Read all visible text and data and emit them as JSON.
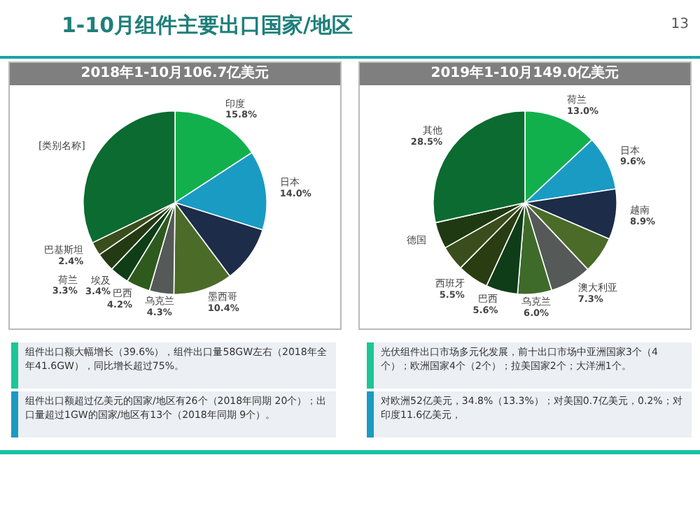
{
  "chart_data": [
    {
      "type": "other",
      "title": "1-10月组件主要出口国家/地区",
      "annotations": [
        "13",
        "组件出口额大幅增长（39.6%），组件出口量58GW左右（2018年全年41.6GW），同比增长超过75%。",
        "光伏组件出口市场多元化发展，前十出口市场中亚洲国家3个（4个）；欧洲国家4个（2个）；拉美国家2个；大洋洲1个。",
        "组件出口额超过亿美元的国家/地区有26个（2018年同期 20个）；出口量超过1GW的国家/地区有13个（2018年同期 9个）。",
        "对欧洲52亿美元，34.8%（13.3%）；对美国0.7亿美元，0.2%；对印度11.6亿美元，"
      ]
    },
    {
      "type": "pie",
      "title": "2018年1-10月106.7亿美元",
      "legend": false,
      "categories": [
        "印度",
        "日本",
        null,
        "墨西哥",
        "乌克兰",
        "巴西",
        "埃及",
        "荷兰",
        "巴基斯坦",
        "[类别名称]"
      ],
      "values": [
        15.8,
        14.0,
        10.0,
        10.4,
        4.3,
        4.2,
        3.4,
        3.3,
        2.4,
        32.2
      ],
      "value_labels": [
        "15.8%",
        "14.0%",
        null,
        "10.4%",
        "4.3%",
        "4.2%",
        "3.4%",
        "3.3%",
        "2.4%",
        null
      ],
      "colors": [
        "#12b04c",
        "#1a9bc4",
        "#1d2c48",
        "#4b6b29",
        "#555a58",
        "#2e5a1e",
        "#0f3d18",
        "#243a12",
        "#3a4d1c",
        "#0b6b30"
      ]
    },
    {
      "type": "pie",
      "title": "2019年1-10月149.0亿美元",
      "legend": false,
      "categories": [
        "荷兰",
        "日本",
        "越南",
        null,
        "澳大利亚",
        "乌克兰",
        "巴西",
        "西班牙",
        null,
        "德国",
        "其他"
      ],
      "values": [
        13.0,
        9.6,
        8.9,
        6.5,
        7.3,
        6.0,
        5.6,
        5.5,
        4.4,
        4.7,
        28.5
      ],
      "value_labels": [
        "13.0%",
        "9.6%",
        "8.9%",
        null,
        "7.3%",
        "6.0%",
        "5.6%",
        "5.5%",
        null,
        null,
        "28.5%"
      ],
      "colors": [
        "#12b04c",
        "#1a9bc4",
        "#1d2c48",
        "#4b6b29",
        "#555a58",
        "#3f6b2a",
        "#0f3d18",
        "#2a3d12",
        "#3a4d1c",
        "#1f3a12",
        "#0b6b30"
      ]
    }
  ]
}
